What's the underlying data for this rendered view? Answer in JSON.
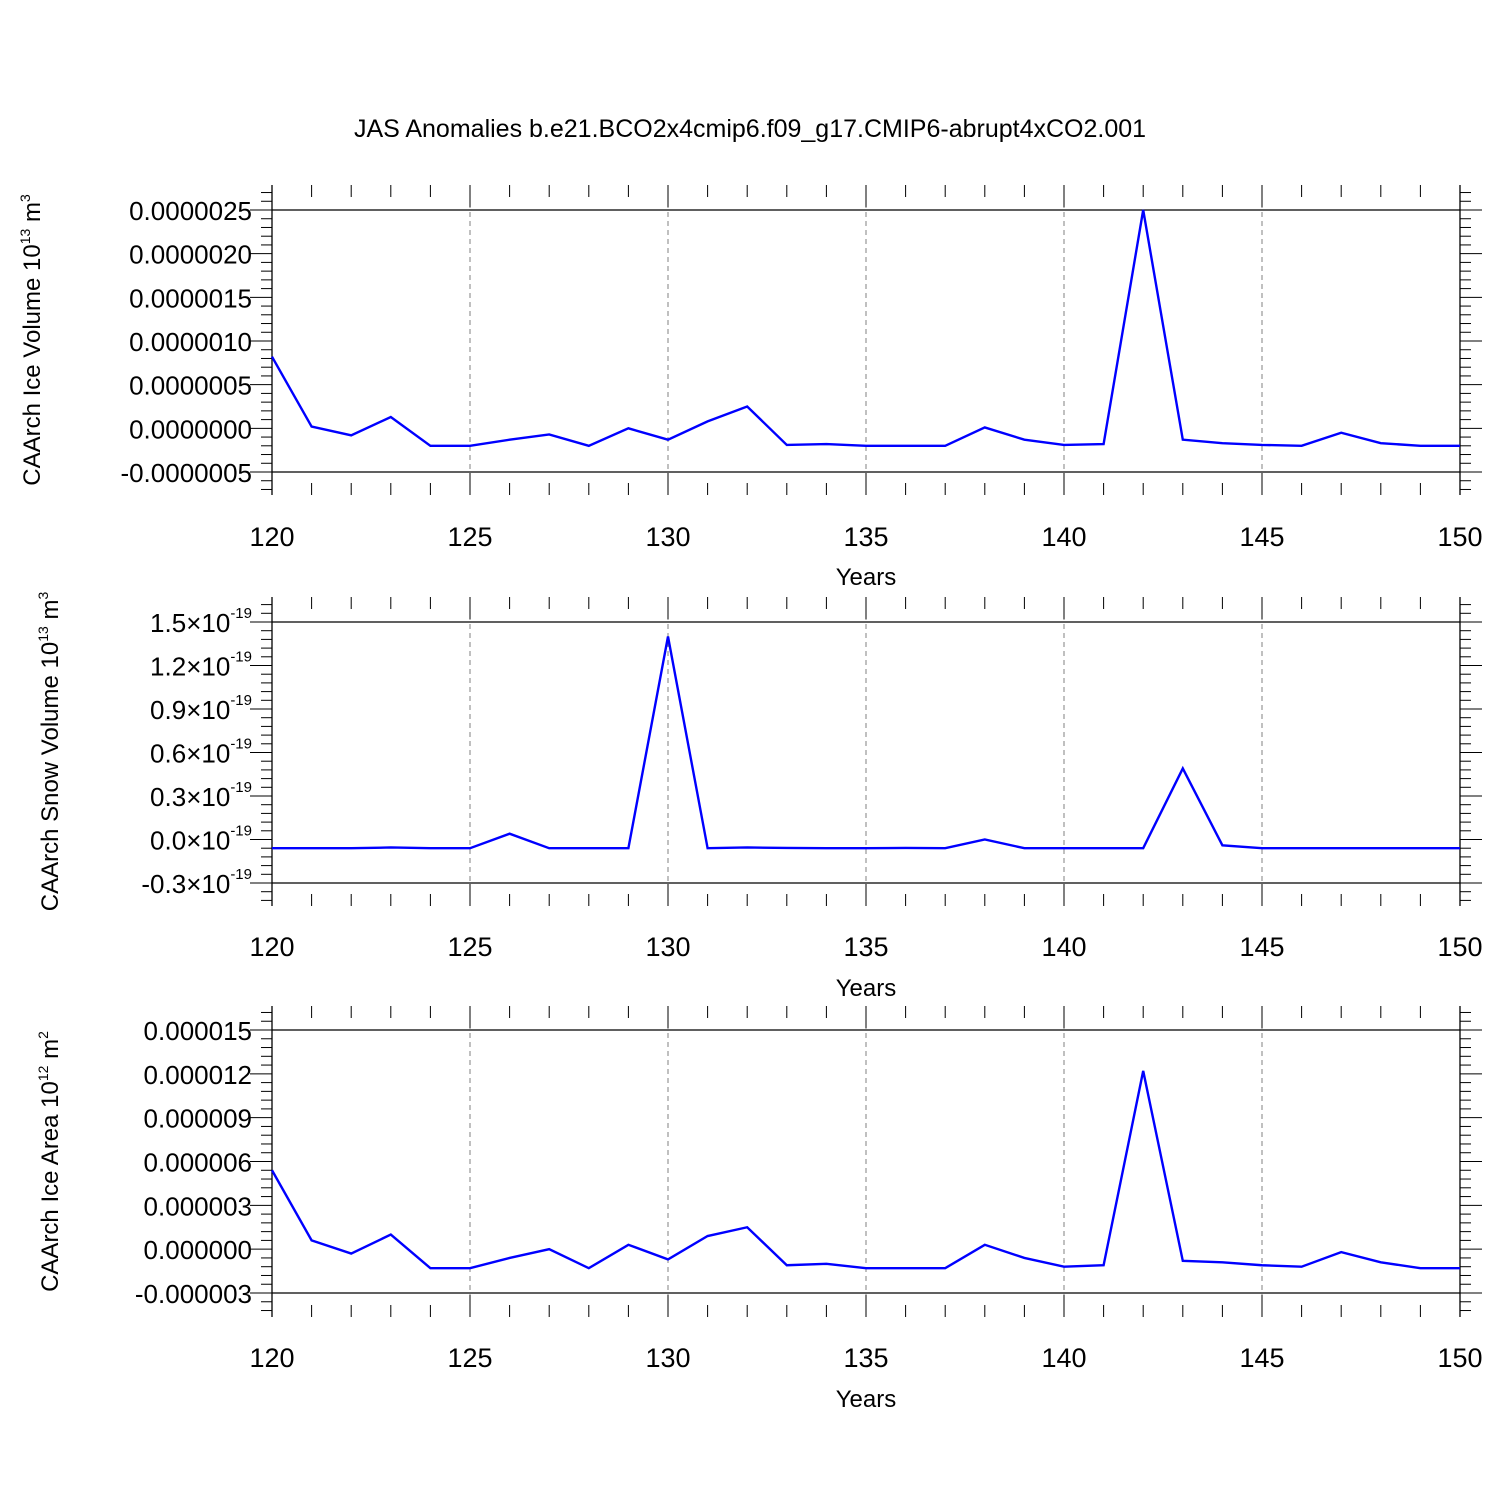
{
  "figure_title": "JAS Anomalies b.e21.BCO2x4cmip6.f09_g17.CMIP6-abrupt4xCO2.001",
  "colors": {
    "line": "#0000ff",
    "axis": "#000000",
    "grid": "#808080"
  },
  "chart_data": [
    {
      "type": "line",
      "title": "",
      "xlabel": "Years",
      "ylabel": {
        "text": "CAArch Ice Volume 10",
        "sup": "13",
        "unit": " m",
        "unit_sup": "3"
      },
      "xlim": [
        120,
        150
      ],
      "ylim": [
        -5e-07,
        2.5e-06
      ],
      "x_ticks": [
        120,
        125,
        130,
        135,
        140,
        145,
        150
      ],
      "x_tick_labels": [
        "120",
        "125",
        "130",
        "135",
        "140",
        "145",
        "150"
      ],
      "y_ticks": [
        -5e-07,
        0.0,
        5e-07,
        1e-06,
        1.5e-06,
        2e-06,
        2.5e-06
      ],
      "y_tick_labels": [
        "-0.0000005",
        "0.0000000",
        "0.0000005",
        "0.0000010",
        "0.0000015",
        "0.0000020",
        "0.0000025"
      ],
      "grid_x": true,
      "x": [
        120,
        121,
        122,
        123,
        124,
        125,
        126,
        127,
        128,
        129,
        130,
        131,
        132,
        133,
        134,
        135,
        136,
        137,
        138,
        139,
        140,
        141,
        142,
        143,
        144,
        145,
        146,
        147,
        148,
        149,
        150
      ],
      "series": [
        {
          "values": [
            8.2e-07,
            2e-08,
            -8e-08,
            1.3e-07,
            -2e-07,
            -2e-07,
            -1.3e-07,
            -7e-08,
            -2e-07,
            0.0,
            -1.3e-07,
            8e-08,
            2.5e-07,
            -1.9e-07,
            -1.8e-07,
            -2e-07,
            -2e-07,
            -2e-07,
            1e-08,
            -1.3e-07,
            -1.9e-07,
            -1.8e-07,
            2.5e-06,
            -1.3e-07,
            -1.7e-07,
            -1.9e-07,
            -2e-07,
            -5e-08,
            -1.7e-07,
            -2e-07,
            -2e-07
          ]
        }
      ]
    },
    {
      "type": "line",
      "title": "",
      "xlabel": "Years",
      "ylabel": {
        "text": "CAArch Snow Volume 10",
        "sup": "13",
        "unit": " m",
        "unit_sup": "3"
      },
      "xlim": [
        120,
        150
      ],
      "ylim": [
        -3e-20,
        1.5e-19
      ],
      "x_ticks": [
        120,
        125,
        130,
        135,
        140,
        145,
        150
      ],
      "x_tick_labels": [
        "120",
        "125",
        "130",
        "135",
        "140",
        "145",
        "150"
      ],
      "y_ticks": [
        -3e-20,
        0.0,
        3e-20,
        6e-20,
        9e-20,
        1.2e-19,
        1.5e-19
      ],
      "y_tick_labels": [
        {
          "mant": "-0.3",
          "times": "×10",
          "exp": "-19"
        },
        {
          "mant": "0.0",
          "times": "×10",
          "exp": "-19"
        },
        {
          "mant": "0.3",
          "times": "×10",
          "exp": "-19"
        },
        {
          "mant": "0.6",
          "times": "×10",
          "exp": "-19"
        },
        {
          "mant": "0.9",
          "times": "×10",
          "exp": "-19"
        },
        {
          "mant": "1.2",
          "times": "×10",
          "exp": "-19"
        },
        {
          "mant": "1.5",
          "times": "×10",
          "exp": "-19"
        }
      ],
      "grid_x": true,
      "x": [
        120,
        121,
        122,
        123,
        124,
        125,
        126,
        127,
        128,
        129,
        130,
        131,
        132,
        133,
        134,
        135,
        136,
        137,
        138,
        139,
        140,
        141,
        142,
        143,
        144,
        145,
        146,
        147,
        148,
        149,
        150
      ],
      "series": [
        {
          "values": [
            -6e-21,
            -6e-21,
            -6e-21,
            -5.5e-21,
            -6e-21,
            -6e-21,
            4e-21,
            -6e-21,
            -6e-21,
            -6e-21,
            1.4e-19,
            -6e-21,
            -5.5e-21,
            -5.8e-21,
            -6e-21,
            -6e-21,
            -5.8e-21,
            -6e-21,
            0.0,
            -6e-21,
            -6e-21,
            -6e-21,
            -6e-21,
            4.9e-20,
            -4e-21,
            -6e-21,
            -6e-21,
            -6e-21,
            -6e-21,
            -6e-21,
            -6e-21
          ]
        }
      ]
    },
    {
      "type": "line",
      "title": "",
      "xlabel": "Years",
      "ylabel": {
        "text": "CAArch Ice Area 10",
        "sup": "12",
        "unit": " m",
        "unit_sup": "2"
      },
      "xlim": [
        120,
        150
      ],
      "ylim": [
        -3e-06,
        1.5e-05
      ],
      "x_ticks": [
        120,
        125,
        130,
        135,
        140,
        145,
        150
      ],
      "x_tick_labels": [
        "120",
        "125",
        "130",
        "135",
        "140",
        "145",
        "150"
      ],
      "y_ticks": [
        -3e-06,
        0.0,
        3e-06,
        6e-06,
        9e-06,
        1.2e-05,
        1.5e-05
      ],
      "y_tick_labels": [
        "-0.000003",
        "0.000000",
        "0.000003",
        "0.000006",
        "0.000009",
        "0.000012",
        "0.000015"
      ],
      "grid_x": true,
      "x": [
        120,
        121,
        122,
        123,
        124,
        125,
        126,
        127,
        128,
        129,
        130,
        131,
        132,
        133,
        134,
        135,
        136,
        137,
        138,
        139,
        140,
        141,
        142,
        143,
        144,
        145,
        146,
        147,
        148,
        149,
        150
      ],
      "series": [
        {
          "values": [
            5.4e-06,
            6e-07,
            -3e-07,
            1e-06,
            -1.3e-06,
            -1.3e-06,
            -6e-07,
            0.0,
            -1.3e-06,
            3e-07,
            -7e-07,
            9e-07,
            1.5e-06,
            -1.1e-06,
            -1e-06,
            -1.3e-06,
            -1.3e-06,
            -1.3e-06,
            3e-07,
            -6e-07,
            -1.2e-06,
            -1.1e-06,
            1.22e-05,
            -8e-07,
            -9e-07,
            -1.1e-06,
            -1.2e-06,
            -2e-07,
            -9e-07,
            -1.3e-06,
            -1.3e-06
          ]
        }
      ]
    }
  ]
}
